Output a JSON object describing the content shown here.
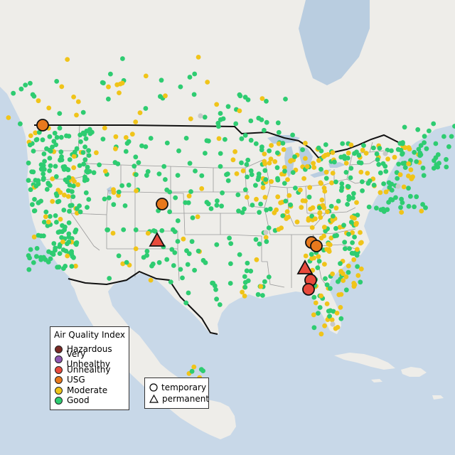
{
  "map": {
    "colors": {
      "ocean": "#c8d8e8",
      "land": "#eeede9",
      "lakes": "#b9cde0",
      "state_border": "#9a9a9a",
      "country_border": "#111111"
    }
  },
  "aqi_legend": {
    "title": "Air Quality Index",
    "items": [
      {
        "label": "Hazardous",
        "color": "#7a2a24"
      },
      {
        "label": "Very Unhealthy",
        "color": "#8e55b0"
      },
      {
        "label": "Unhealthy",
        "color": "#e84a3c"
      },
      {
        "label": "USG",
        "color": "#e8791d"
      },
      {
        "label": "Moderate",
        "color": "#f0c419"
      },
      {
        "label": "Good",
        "color": "#2ecc71"
      }
    ]
  },
  "type_legend": {
    "items": [
      {
        "label": "temporary",
        "symbol": "circle"
      },
      {
        "label": "permanent",
        "symbol": "triangle"
      }
    ]
  },
  "map_markers": {
    "offline_color": "#c9c9c9",
    "notable": [
      {
        "category": "USG",
        "type": "temporary",
        "place": "Washington/BC border"
      },
      {
        "category": "USG",
        "type": "temporary",
        "place": "Colorado"
      },
      {
        "category": "Unhealthy",
        "type": "permanent",
        "place": "New Mexico"
      },
      {
        "category": "USG",
        "type": "temporary",
        "place": "Tennessee"
      },
      {
        "category": "USG",
        "type": "temporary",
        "place": "Tennessee"
      },
      {
        "category": "Unhealthy",
        "type": "permanent",
        "place": "Georgia"
      },
      {
        "category": "Unhealthy",
        "type": "temporary",
        "place": "Georgia/Florida"
      },
      {
        "category": "Unhealthy",
        "type": "temporary",
        "place": "Florida"
      }
    ]
  }
}
